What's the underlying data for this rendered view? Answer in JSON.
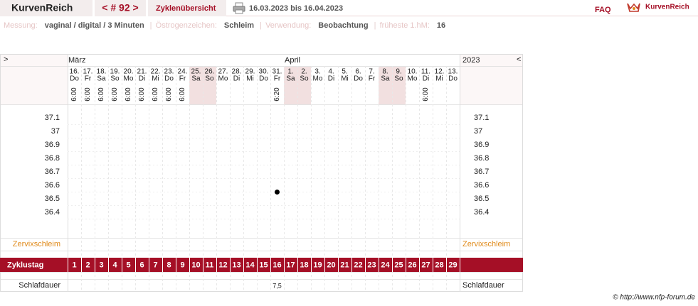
{
  "header": {
    "brand": "KurvenReich",
    "cycle_nav": "< # 92 >",
    "overview": "Zyklenübersicht",
    "period": "16.03.2023 bis 16.04.2023",
    "faq": "FAQ",
    "logo_text": "KurvenReich"
  },
  "info": [
    {
      "label": "Messung:",
      "value": "vaginal / digital / 3 Minuten"
    },
    {
      "label": "Östrogenzeichen:",
      "value": "Schleim"
    },
    {
      "label": "Verwendung:",
      "value": "Beobachtung"
    },
    {
      "label": "früheste 1.hM:",
      "value": "16"
    }
  ],
  "chart": {
    "nav_left": ">",
    "nav_right": "<",
    "months": [
      "März",
      "April"
    ],
    "year": "2023",
    "days": [
      {
        "date": "16.",
        "weekday": "Do",
        "time": "6:00",
        "weekend": false
      },
      {
        "date": "17.",
        "weekday": "Fr",
        "time": "6:00",
        "weekend": false
      },
      {
        "date": "18.",
        "weekday": "Sa",
        "time": "6:00",
        "weekend": false
      },
      {
        "date": "19.",
        "weekday": "So",
        "time": "6:00",
        "weekend": false
      },
      {
        "date": "20.",
        "weekday": "Mo",
        "time": "6:00",
        "weekend": false
      },
      {
        "date": "21.",
        "weekday": "Di",
        "time": "6:00",
        "weekend": false
      },
      {
        "date": "22.",
        "weekday": "Mi",
        "time": "6:00",
        "weekend": false
      },
      {
        "date": "23.",
        "weekday": "Do",
        "time": "6:00",
        "weekend": false
      },
      {
        "date": "24.",
        "weekday": "Fr",
        "time": "6:00",
        "weekend": false
      },
      {
        "date": "25.",
        "weekday": "Sa",
        "time": null,
        "weekend": true
      },
      {
        "date": "26.",
        "weekday": "So",
        "time": null,
        "weekend": true
      },
      {
        "date": "27.",
        "weekday": "Mo",
        "time": null,
        "weekend": false
      },
      {
        "date": "28.",
        "weekday": "Di",
        "time": null,
        "weekend": false
      },
      {
        "date": "29.",
        "weekday": "Mi",
        "time": null,
        "weekend": false
      },
      {
        "date": "30.",
        "weekday": "Do",
        "time": null,
        "weekend": false
      },
      {
        "date": "31.",
        "weekday": "Fr",
        "time": "6:20",
        "weekend": false
      },
      {
        "date": "1.",
        "weekday": "Sa",
        "time": null,
        "weekend": true
      },
      {
        "date": "2.",
        "weekday": "So",
        "time": null,
        "weekend": true
      },
      {
        "date": "3.",
        "weekday": "Mo",
        "time": null,
        "weekend": false
      },
      {
        "date": "4.",
        "weekday": "Di",
        "time": null,
        "weekend": false
      },
      {
        "date": "5.",
        "weekday": "Mi",
        "time": null,
        "weekend": false
      },
      {
        "date": "6.",
        "weekday": "Do",
        "time": null,
        "weekend": false
      },
      {
        "date": "7.",
        "weekday": "Fr",
        "time": null,
        "weekend": false
      },
      {
        "date": "8.",
        "weekday": "Sa",
        "time": null,
        "weekend": true
      },
      {
        "date": "9.",
        "weekday": "So",
        "time": null,
        "weekend": true
      },
      {
        "date": "10.",
        "weekday": "Mo",
        "time": null,
        "weekend": false
      },
      {
        "date": "11.",
        "weekday": "Di",
        "time": "6:00",
        "weekend": false
      },
      {
        "date": "12.",
        "weekday": "Mi",
        "time": null,
        "weekend": false
      },
      {
        "date": "13.",
        "weekday": "Do",
        "time": null,
        "weekend": false
      }
    ],
    "temperature": {
      "ticks": [
        37.1,
        37,
        36.9,
        36.8,
        36.7,
        36.6,
        36.5,
        36.4
      ],
      "values": [
        null,
        null,
        null,
        null,
        null,
        null,
        null,
        null,
        null,
        null,
        null,
        null,
        null,
        null,
        null,
        36.55,
        null,
        null,
        null,
        null,
        null,
        null,
        null,
        null,
        null,
        null,
        null,
        null,
        null
      ]
    },
    "mucus_label": "Zervixschleim",
    "cycle_label": "Zyklustag",
    "cycle_days": [
      1,
      2,
      3,
      4,
      5,
      6,
      7,
      8,
      9,
      10,
      11,
      12,
      13,
      14,
      15,
      16,
      17,
      18,
      19,
      20,
      21,
      22,
      23,
      24,
      25,
      26,
      27,
      28,
      29
    ],
    "sleep_label": "Schlafdauer",
    "sleep": [
      null,
      null,
      null,
      null,
      null,
      null,
      null,
      null,
      null,
      null,
      null,
      null,
      null,
      null,
      null,
      "7,5",
      null,
      null,
      null,
      null,
      null,
      null,
      null,
      null,
      null,
      null,
      null,
      null,
      null
    ]
  },
  "footer": "© http://www.nfp-forum.de"
}
